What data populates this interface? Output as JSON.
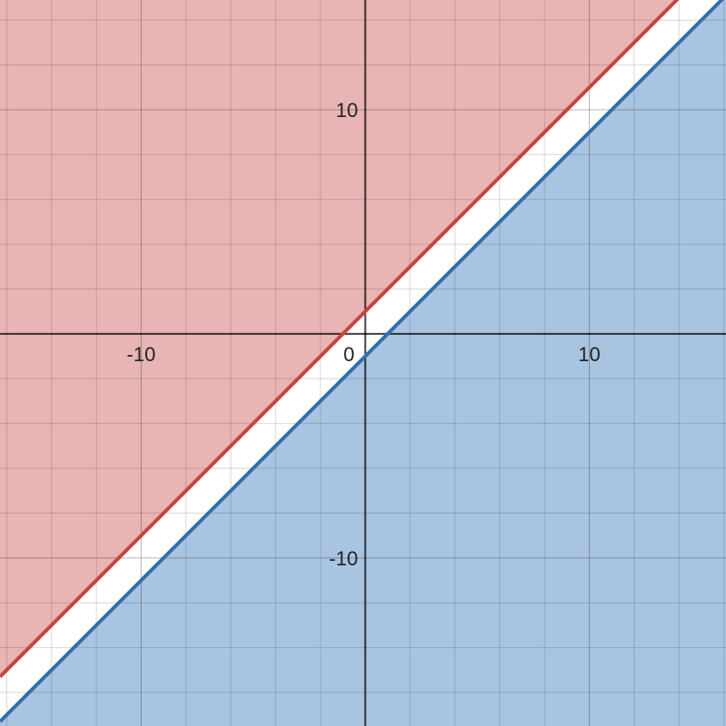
{
  "chart_data": {
    "type": "line",
    "title": "",
    "xlabel": "",
    "ylabel": "",
    "xlim": [
      -16.3,
      16.1
    ],
    "ylim": [
      -17.5,
      14.9
    ],
    "grid": true,
    "grid_step": 2,
    "x_ticks": [
      {
        "value": -10,
        "label": "-10"
      },
      {
        "value": 0,
        "label": "0"
      },
      {
        "value": 10,
        "label": "10"
      }
    ],
    "y_ticks": [
      {
        "value": 10,
        "label": "10"
      },
      {
        "value": -10,
        "label": "-10"
      }
    ],
    "series": [
      {
        "slope": 1,
        "intercept": 1,
        "shade": "above",
        "color": "#c74440",
        "fill": "#e8b4b4"
      },
      {
        "slope": 1,
        "intercept": -1,
        "shade": "below",
        "color": "#2d70b3",
        "fill": "#a9c4e0"
      }
    ]
  }
}
